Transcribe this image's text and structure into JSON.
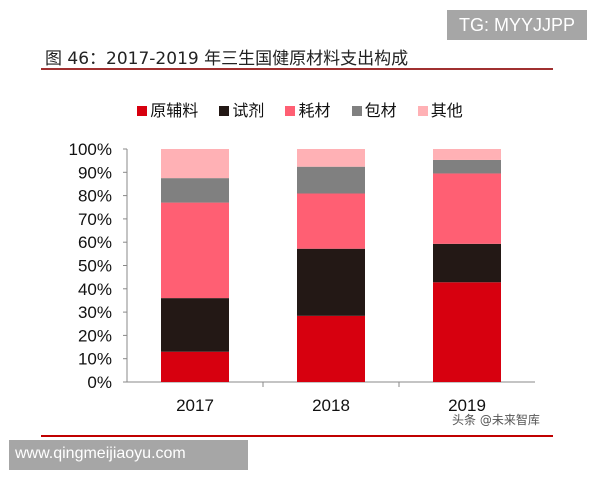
{
  "watermark_top": "TG: MYYJJPP",
  "watermark_url": "www.qingmeijiaoyu.com",
  "watermark_source": "头条 @未来智库",
  "chart_data": {
    "type": "bar",
    "stacked": true,
    "title": "图 46：2017-2019 年三生国健原材料支出构成",
    "categories": [
      "2017",
      "2018",
      "2019"
    ],
    "ylim": [
      0,
      100
    ],
    "yticks": [
      "0%",
      "10%",
      "20%",
      "30%",
      "40%",
      "50%",
      "60%",
      "70%",
      "80%",
      "90%",
      "100%"
    ],
    "grid": false,
    "legend_position": "top",
    "series": [
      {
        "name": "原辅料",
        "color": "#d7000f",
        "values": [
          13,
          28.4,
          42.8
        ]
      },
      {
        "name": "试剂",
        "color": "#231815",
        "values": [
          23,
          28.8,
          16.5
        ]
      },
      {
        "name": "耗材",
        "color": "#ff5f73",
        "values": [
          41,
          23.7,
          30.2
        ]
      },
      {
        "name": "包材",
        "color": "#808080",
        "values": [
          10.5,
          11.5,
          5.8
        ]
      },
      {
        "name": "其他",
        "color": "#ffb1b5",
        "values": [
          12.5,
          7.6,
          4.7
        ]
      }
    ]
  }
}
